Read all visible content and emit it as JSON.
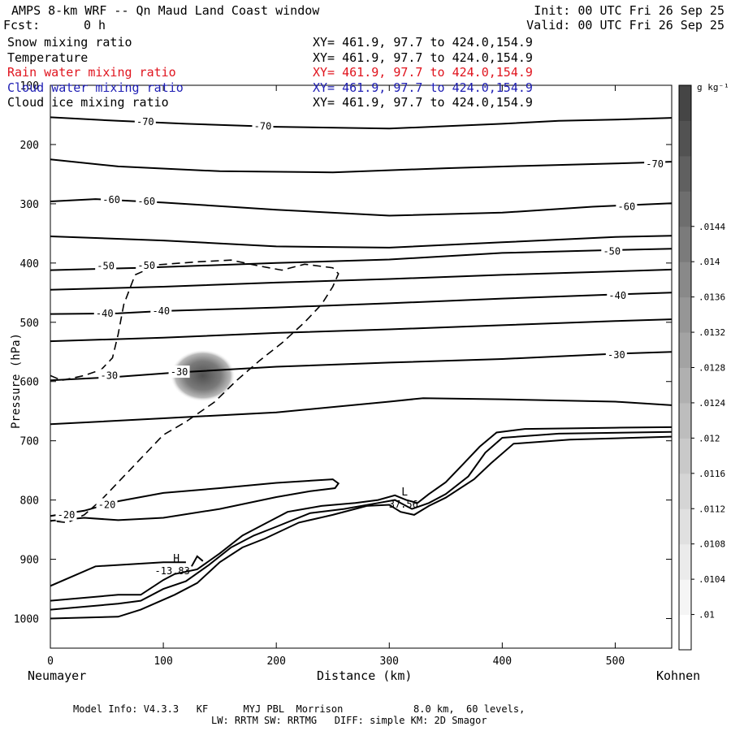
{
  "header": {
    "title": "AMPS 8-km WRF -- Qn Maud Land Coast window",
    "init": "Init: 00 UTC Fri 26 Sep 25",
    "fcst_label": "Fcst:",
    "fcst_value": "0 h",
    "valid": "Valid: 00 UTC Fri 26 Sep 25"
  },
  "legend": [
    {
      "name": "Snow mixing ratio",
      "xy": "XY= 461.9, 97.7 to 424.0,154.9",
      "color": "#000000"
    },
    {
      "name": "Temperature",
      "xy": "XY= 461.9, 97.7 to 424.0,154.9",
      "color": "#000000"
    },
    {
      "name": "Rain water mixing ratio",
      "xy": "XY= 461.9, 97.7 to 424.0,154.9",
      "color": "#e0141e"
    },
    {
      "name": "Cloud water mixing ratio",
      "xy": "XY= 461.9, 97.7 to 424.0,154.9",
      "color": "#1e1eb4"
    },
    {
      "name": "Cloud ice mixing ratio",
      "xy": "XY= 461.9, 97.7 to 424.0,154.9",
      "color": "#000000"
    }
  ],
  "footer": {
    "line1": "Model Info: V4.3.3   KF      MYJ PBL  Morrison            8.0 km,  60 levels,",
    "line2": "LW: RRTM SW: RRTMG   DIFF: simple KM: 2D Smagor"
  },
  "chart_data": {
    "type": "contour",
    "xlabel": "Distance (km)",
    "ylabel": "Pressure (hPa)",
    "xlim": [
      0,
      550
    ],
    "ylim": [
      1050,
      100
    ],
    "x_ticks": [
      0,
      100,
      200,
      300,
      400,
      500
    ],
    "y_ticks": [
      100,
      200,
      300,
      400,
      500,
      600,
      700,
      800,
      900,
      1000
    ],
    "left_endpoint": "Neumayer",
    "right_endpoint": "Kohnen",
    "colorbar": {
      "unit": "g kg⁻¹",
      "ticks": [
        ".01",
        ".0104",
        ".0108",
        ".0112",
        ".0116",
        ".012",
        ".0124",
        ".0128",
        ".0132",
        ".0136",
        ".014",
        ".0144"
      ],
      "colors": [
        "#ffffff",
        "#f5f5f5",
        "#ebebeb",
        "#e0e0e0",
        "#d5d5d5",
        "#c9c9c9",
        "#bdbdbd",
        "#b0b0b0",
        "#a3a3a3",
        "#969696",
        "#898989",
        "#7b7b7b",
        "#6e6e6e",
        "#606060",
        "#525252",
        "#454545"
      ]
    },
    "isotherms": [
      {
        "label": "-70",
        "points": [
          [
            0,
            154
          ],
          [
            60,
            160
          ],
          [
            120,
            165
          ],
          [
            200,
            170
          ],
          [
            300,
            173
          ],
          [
            400,
            165
          ],
          [
            450,
            160
          ],
          [
            500,
            158
          ],
          [
            550,
            155
          ]
        ],
        "labels_at": [
          [
            84,
            162
          ],
          [
            188,
            169
          ]
        ]
      },
      {
        "label": "-70",
        "points": [
          [
            0,
            225
          ],
          [
            60,
            237
          ],
          [
            150,
            245
          ],
          [
            250,
            247
          ],
          [
            350,
            240
          ],
          [
            420,
            236
          ],
          [
            500,
            232
          ],
          [
            550,
            229
          ]
        ],
        "labels_at": [
          [
            535,
            233
          ]
        ]
      },
      {
        "label": "-60",
        "points": [
          [
            0,
            296
          ],
          [
            40,
            292
          ],
          [
            100,
            298
          ],
          [
            200,
            310
          ],
          [
            300,
            320
          ],
          [
            400,
            315
          ],
          [
            480,
            305
          ],
          [
            550,
            299
          ]
        ],
        "labels_at": [
          [
            54,
            293
          ],
          [
            85,
            296
          ],
          [
            510,
            305
          ]
        ]
      },
      {
        "label": "",
        "points": [
          [
            0,
            355
          ],
          [
            100,
            362
          ],
          [
            200,
            372
          ],
          [
            300,
            374
          ],
          [
            400,
            365
          ],
          [
            500,
            356
          ],
          [
            550,
            354
          ]
        ],
        "labels_at": []
      },
      {
        "label": "-50",
        "points": [
          [
            0,
            412
          ],
          [
            80,
            408
          ],
          [
            200,
            400
          ],
          [
            300,
            394
          ],
          [
            400,
            383
          ],
          [
            500,
            378
          ],
          [
            550,
            376
          ]
        ],
        "labels_at": [
          [
            49,
            405
          ],
          [
            85,
            404
          ],
          [
            497,
            380
          ]
        ]
      },
      {
        "label": "",
        "points": [
          [
            0,
            445
          ],
          [
            100,
            440
          ],
          [
            200,
            433
          ],
          [
            300,
            427
          ],
          [
            400,
            420
          ],
          [
            500,
            414
          ],
          [
            550,
            411
          ]
        ],
        "labels_at": []
      },
      {
        "label": "-40",
        "points": [
          [
            0,
            486
          ],
          [
            60,
            485
          ],
          [
            100,
            481
          ],
          [
            200,
            475
          ],
          [
            300,
            468
          ],
          [
            400,
            460
          ],
          [
            500,
            453
          ],
          [
            550,
            450
          ]
        ],
        "labels_at": [
          [
            48,
            485
          ],
          [
            98,
            481
          ],
          [
            502,
            455
          ]
        ]
      },
      {
        "label": "",
        "points": [
          [
            0,
            532
          ],
          [
            100,
            526
          ],
          [
            200,
            518
          ],
          [
            300,
            512
          ],
          [
            400,
            505
          ],
          [
            500,
            498
          ],
          [
            550,
            495
          ]
        ],
        "labels_at": []
      },
      {
        "label": "-30",
        "points": [
          [
            0,
            598
          ],
          [
            60,
            592
          ],
          [
            110,
            585
          ],
          [
            200,
            575
          ],
          [
            300,
            568
          ],
          [
            400,
            562
          ],
          [
            500,
            553
          ],
          [
            550,
            550
          ]
        ],
        "labels_at": [
          [
            52,
            590
          ],
          [
            114,
            584
          ],
          [
            501,
            555
          ]
        ]
      },
      {
        "label": "",
        "points": [
          [
            0,
            672
          ],
          [
            100,
            662
          ],
          [
            200,
            652
          ],
          [
            300,
            634
          ],
          [
            330,
            628
          ],
          [
            400,
            630
          ],
          [
            500,
            634
          ],
          [
            550,
            640
          ]
        ],
        "labels_at": []
      },
      {
        "label": "-20",
        "points": [
          [
            0,
            827
          ],
          [
            30,
            818
          ],
          [
            60,
            802
          ],
          [
            100,
            788
          ],
          [
            150,
            780
          ],
          [
            200,
            771
          ],
          [
            250,
            765
          ],
          [
            255,
            772
          ],
          [
            252,
            780
          ],
          [
            230,
            785
          ],
          [
            200,
            795
          ],
          [
            150,
            815
          ],
          [
            100,
            830
          ],
          [
            60,
            834
          ],
          [
            30,
            830
          ],
          [
            0,
            835
          ]
        ],
        "labels_at": [
          [
            14,
            825
          ],
          [
            50,
            808
          ]
        ]
      },
      {
        "label": "",
        "points": [
          [
            0,
            945
          ],
          [
            40,
            912
          ],
          [
            100,
            905
          ],
          [
            120,
            905
          ]
        ],
        "labels_at": []
      },
      {
        "label": "",
        "points": [
          [
            125,
            912
          ],
          [
            130,
            895
          ],
          [
            135,
            903
          ]
        ],
        "labels_at": []
      }
    ],
    "cloud_ice": [
      {
        "points": [
          [
            0,
            590
          ],
          [
            10,
            598
          ],
          [
            30,
            590
          ],
          [
            45,
            580
          ],
          [
            55,
            560
          ],
          [
            60,
            520
          ],
          [
            65,
            470
          ],
          [
            75,
            420
          ],
          [
            95,
            403
          ],
          [
            130,
            398
          ],
          [
            160,
            395
          ],
          [
            185,
            405
          ],
          [
            205,
            412
          ],
          [
            225,
            402
          ],
          [
            250,
            408
          ],
          [
            255,
            418
          ],
          [
            250,
            440
          ],
          [
            240,
            470
          ],
          [
            225,
            500
          ],
          [
            205,
            535
          ],
          [
            185,
            565
          ],
          [
            165,
            598
          ],
          [
            145,
            635
          ],
          [
            120,
            668
          ],
          [
            100,
            690
          ],
          [
            80,
            730
          ],
          [
            60,
            770
          ],
          [
            45,
            800
          ],
          [
            30,
            825
          ],
          [
            15,
            838
          ],
          [
            0,
            835
          ]
        ]
      }
    ],
    "snow_blob": {
      "center": [
        135,
        590
      ],
      "value": 0.0144
    },
    "terrain": [
      {
        "points": [
          [
            0,
            970
          ],
          [
            60,
            960
          ],
          [
            80,
            960
          ],
          [
            100,
            935
          ],
          [
            110,
            925
          ],
          [
            130,
            917
          ],
          [
            150,
            890
          ],
          [
            170,
            860
          ],
          [
            190,
            840
          ],
          [
            210,
            820
          ],
          [
            240,
            810
          ],
          [
            270,
            805
          ],
          [
            290,
            800
          ],
          [
            305,
            792
          ],
          [
            315,
            800
          ],
          [
            325,
            805
          ],
          [
            335,
            790
          ],
          [
            350,
            770
          ],
          [
            365,
            740
          ],
          [
            380,
            710
          ],
          [
            395,
            686
          ],
          [
            420,
            680
          ],
          [
            500,
            678
          ],
          [
            550,
            677
          ]
        ]
      },
      {
        "points": [
          [
            0,
            985
          ],
          [
            60,
            975
          ],
          [
            80,
            970
          ],
          [
            100,
            950
          ],
          [
            120,
            937
          ],
          [
            140,
            910
          ],
          [
            160,
            880
          ],
          [
            180,
            860
          ],
          [
            200,
            845
          ],
          [
            230,
            822
          ],
          [
            260,
            815
          ],
          [
            290,
            805
          ],
          [
            305,
            800
          ],
          [
            320,
            815
          ],
          [
            335,
            805
          ],
          [
            350,
            790
          ],
          [
            370,
            760
          ],
          [
            385,
            720
          ],
          [
            400,
            695
          ],
          [
            450,
            688
          ],
          [
            550,
            685
          ]
        ]
      },
      {
        "points": [
          [
            0,
            1000
          ],
          [
            60,
            997
          ],
          [
            80,
            985
          ],
          [
            110,
            960
          ],
          [
            130,
            940
          ],
          [
            150,
            905
          ],
          [
            170,
            880
          ],
          [
            190,
            865
          ],
          [
            220,
            838
          ],
          [
            250,
            825
          ],
          [
            280,
            810
          ],
          [
            300,
            808
          ],
          [
            310,
            820
          ],
          [
            322,
            825
          ],
          [
            335,
            810
          ],
          [
            350,
            796
          ],
          [
            375,
            765
          ],
          [
            390,
            738
          ],
          [
            410,
            705
          ],
          [
            460,
            698
          ],
          [
            550,
            693
          ]
        ]
      }
    ],
    "extremes": [
      {
        "symbol": "H",
        "value": "-13.83",
        "at": [
          108,
          910
        ]
      },
      {
        "symbol": "L",
        "value": "-37.56",
        "at": [
          310,
          798
        ]
      }
    ]
  }
}
